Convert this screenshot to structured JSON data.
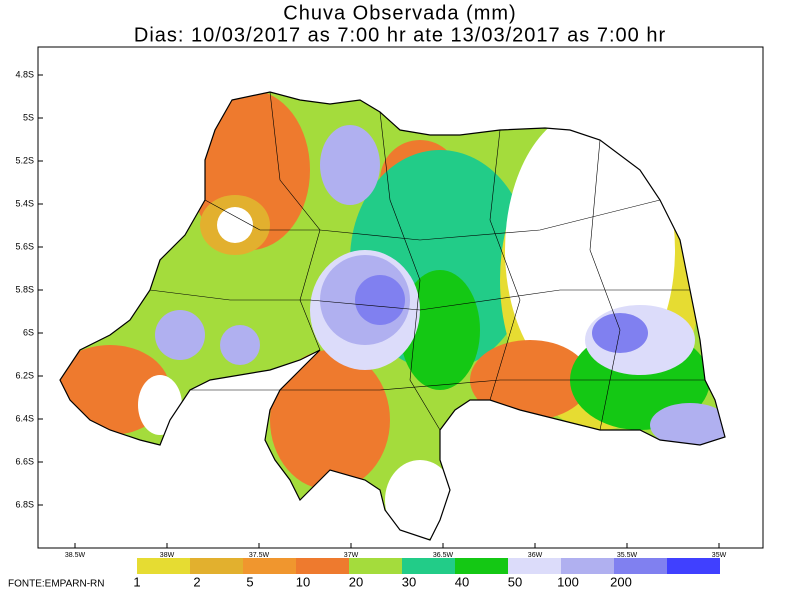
{
  "header": {
    "title": "Chuva Observada (mm)",
    "subtitle": "Dias: 10/03/2017 as 7:00 hr ate 13/03/2017 as 7:00 hr"
  },
  "axes": {
    "lat_labels": [
      "4.8S",
      "5S",
      "5.2S",
      "5.4S",
      "5.6S",
      "5.8S",
      "6S",
      "6.2S",
      "6.4S",
      "6.6S",
      "6.8S"
    ],
    "lon_labels": [
      "38.5W",
      "38W",
      "37.5W",
      "37W",
      "36.5W",
      "36W",
      "35.5W",
      "35W"
    ]
  },
  "legend": {
    "labels": [
      "1",
      "2",
      "5",
      "10",
      "20",
      "30",
      "40",
      "50",
      "100",
      "200"
    ],
    "colors": [
      "#e6dc32",
      "#e2b02e",
      "#f0962e",
      "#ee7a2e",
      "#a4dc3c",
      "#22cc88",
      "#14c814",
      "#dcdcfa",
      "#b0b0f0",
      "#8080f0",
      "#4040ff"
    ]
  },
  "source": "FONTE:EMPARN-RN"
}
